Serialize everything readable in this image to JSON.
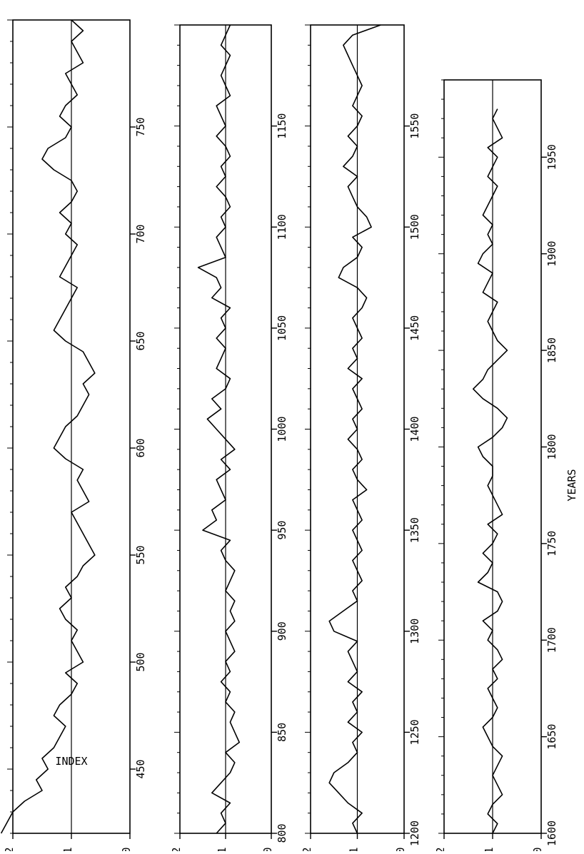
{
  "figure": {
    "index_label": "INDEX",
    "years_label": "YEARS",
    "ink_color": "#000000",
    "background": "#ffffff",
    "orientation": "rotated 90 degrees; time runs bottom-to-top along each panel"
  },
  "chart_data": [
    {
      "type": "line",
      "panel": "420-800",
      "xlabel": "",
      "ylabel": "INDEX",
      "xlim": [
        420,
        800
      ],
      "ylim": [
        0,
        2
      ],
      "x_ticks": [
        450,
        500,
        550,
        600,
        650,
        700,
        750
      ],
      "y_ticks": [
        0,
        1,
        2
      ],
      "reference_line": 1,
      "series": [
        {
          "x": [
            420,
            425,
            430,
            435,
            440,
            445,
            450,
            455,
            460,
            465,
            470,
            475,
            480,
            485,
            490,
            495,
            500,
            505,
            510,
            515,
            520,
            525,
            530,
            535,
            540,
            545,
            550,
            555,
            560,
            565,
            570,
            575,
            580,
            585,
            590,
            595,
            600,
            605,
            610,
            615,
            620,
            625,
            630,
            635,
            640,
            645,
            650,
            655,
            660,
            665,
            670,
            675,
            680,
            685,
            690,
            695,
            700,
            705,
            710,
            715,
            720,
            725,
            730,
            735,
            740,
            745,
            750,
            755,
            760,
            765,
            770,
            775,
            780,
            785,
            790,
            795,
            800
          ],
          "y": [
            2.2,
            2.1,
            2.0,
            1.8,
            1.5,
            1.6,
            1.4,
            1.5,
            1.3,
            1.2,
            1.1,
            1.3,
            1.2,
            1.0,
            0.9,
            1.1,
            0.8,
            0.9,
            1.0,
            0.9,
            1.1,
            1.2,
            1.0,
            1.1,
            0.9,
            0.8,
            0.6,
            0.7,
            0.8,
            0.9,
            1.0,
            0.7,
            0.8,
            0.9,
            0.8,
            1.1,
            1.3,
            1.2,
            1.1,
            0.9,
            0.8,
            0.7,
            0.8,
            0.6,
            0.7,
            0.8,
            1.1,
            1.3,
            1.2,
            1.1,
            1.0,
            0.9,
            1.2,
            1.1,
            1.0,
            0.9,
            1.1,
            1.0,
            1.2,
            1.0,
            0.9,
            1.0,
            1.3,
            1.5,
            1.4,
            1.1,
            1.0,
            1.2,
            1.1,
            0.9,
            1.0,
            1.1,
            0.8,
            0.9,
            1.0,
            0.8,
            1.0
          ]
        }
      ]
    },
    {
      "type": "line",
      "panel": "800-1200",
      "xlabel": "",
      "ylabel": "INDEX",
      "xlim": [
        800,
        1200
      ],
      "ylim": [
        0,
        2
      ],
      "x_ticks": [
        800,
        850,
        900,
        950,
        1000,
        1050,
        1100,
        1150
      ],
      "y_ticks": [
        0,
        1,
        2
      ],
      "reference_line": 1,
      "series": [
        {
          "x": [
            800,
            805,
            810,
            815,
            820,
            825,
            830,
            835,
            840,
            845,
            850,
            855,
            860,
            865,
            870,
            875,
            880,
            885,
            890,
            895,
            900,
            905,
            910,
            915,
            920,
            925,
            930,
            935,
            940,
            945,
            950,
            955,
            960,
            965,
            970,
            975,
            980,
            985,
            990,
            995,
            1000,
            1005,
            1010,
            1015,
            1020,
            1025,
            1030,
            1035,
            1040,
            1045,
            1050,
            1055,
            1060,
            1065,
            1070,
            1075,
            1080,
            1085,
            1090,
            1095,
            1100,
            1105,
            1110,
            1115,
            1120,
            1125,
            1130,
            1135,
            1140,
            1145,
            1150,
            1155,
            1160,
            1165,
            1170,
            1175,
            1180,
            1185,
            1190,
            1195,
            1200
          ],
          "y": [
            1.2,
            1.0,
            1.1,
            0.9,
            1.3,
            1.1,
            0.9,
            0.8,
            1.0,
            0.7,
            0.8,
            0.9,
            0.8,
            1.0,
            0.9,
            1.1,
            0.9,
            1.0,
            0.8,
            0.9,
            1.0,
            0.8,
            0.9,
            0.8,
            1.0,
            0.9,
            0.8,
            1.0,
            1.1,
            0.9,
            1.5,
            1.2,
            1.3,
            1.0,
            1.1,
            1.2,
            0.9,
            1.1,
            0.8,
            1.0,
            1.2,
            1.4,
            1.1,
            1.3,
            1.0,
            0.9,
            1.2,
            1.1,
            1.0,
            1.2,
            1.0,
            1.1,
            0.9,
            1.3,
            1.1,
            1.2,
            1.6,
            1.0,
            1.1,
            1.2,
            1.0,
            1.1,
            0.9,
            1.0,
            1.2,
            1.0,
            1.1,
            0.9,
            1.0,
            1.2,
            1.0,
            1.1,
            1.2,
            0.9,
            1.0,
            1.1,
            1.0,
            0.9,
            1.1,
            1.0,
            0.9
          ]
        }
      ]
    },
    {
      "type": "line",
      "panel": "1200-1600",
      "xlabel": "",
      "ylabel": "INDEX",
      "xlim": [
        1200,
        1600
      ],
      "ylim": [
        0,
        2
      ],
      "x_ticks": [
        1200,
        1250,
        1300,
        1350,
        1400,
        1450,
        1500,
        1550
      ],
      "y_ticks": [
        0,
        1,
        2
      ],
      "reference_line": 1,
      "series": [
        {
          "x": [
            1200,
            1205,
            1210,
            1215,
            1220,
            1225,
            1230,
            1235,
            1240,
            1245,
            1250,
            1255,
            1260,
            1265,
            1270,
            1275,
            1280,
            1285,
            1290,
            1295,
            1300,
            1305,
            1310,
            1315,
            1320,
            1325,
            1330,
            1335,
            1340,
            1345,
            1350,
            1355,
            1360,
            1365,
            1370,
            1375,
            1380,
            1385,
            1390,
            1395,
            1400,
            1405,
            1410,
            1415,
            1420,
            1425,
            1430,
            1435,
            1440,
            1445,
            1450,
            1455,
            1460,
            1465,
            1470,
            1475,
            1480,
            1485,
            1490,
            1495,
            1500,
            1505,
            1510,
            1515,
            1520,
            1525,
            1530,
            1535,
            1540,
            1545,
            1550,
            1555,
            1560,
            1565,
            1570,
            1575,
            1580,
            1585,
            1590,
            1595,
            1600
          ],
          "y": [
            1.0,
            1.1,
            0.9,
            1.2,
            1.4,
            1.6,
            1.5,
            1.2,
            1.0,
            1.1,
            0.9,
            1.2,
            1.0,
            1.1,
            0.9,
            1.2,
            1.0,
            1.1,
            1.2,
            1.0,
            1.5,
            1.6,
            1.3,
            1.0,
            1.1,
            0.9,
            1.0,
            1.1,
            0.9,
            1.0,
            1.1,
            0.9,
            1.0,
            1.1,
            0.8,
            1.0,
            1.1,
            0.9,
            1.0,
            1.2,
            1.0,
            1.1,
            0.9,
            1.0,
            1.1,
            0.9,
            1.2,
            1.0,
            1.1,
            0.9,
            1.0,
            1.1,
            0.9,
            0.8,
            1.0,
            1.4,
            1.3,
            1.0,
            0.9,
            1.1,
            0.7,
            0.8,
            1.0,
            1.1,
            1.2,
            1.0,
            1.3,
            1.1,
            1.0,
            1.2,
            1.0,
            0.9,
            1.1,
            1.0,
            0.9,
            1.0,
            1.1,
            1.2,
            1.3,
            1.1,
            0.5
          ]
        }
      ]
    },
    {
      "type": "line",
      "panel": "1600-1990",
      "xlabel": "YEARS",
      "ylabel": "INDEX",
      "xlim": [
        1600,
        1990
      ],
      "ylim": [
        0,
        2
      ],
      "x_ticks": [
        1600,
        1650,
        1700,
        1750,
        1800,
        1850,
        1900,
        1950
      ],
      "y_ticks": [
        0,
        1,
        2
      ],
      "reference_line": 1,
      "series": [
        {
          "x": [
            1600,
            1605,
            1610,
            1615,
            1620,
            1625,
            1630,
            1635,
            1640,
            1645,
            1650,
            1655,
            1660,
            1665,
            1670,
            1675,
            1680,
            1685,
            1690,
            1695,
            1700,
            1705,
            1710,
            1715,
            1720,
            1725,
            1730,
            1735,
            1740,
            1745,
            1750,
            1755,
            1760,
            1765,
            1770,
            1775,
            1780,
            1785,
            1790,
            1795,
            1800,
            1805,
            1810,
            1815,
            1820,
            1825,
            1830,
            1835,
            1840,
            1845,
            1850,
            1855,
            1860,
            1865,
            1870,
            1875,
            1880,
            1885,
            1890,
            1895,
            1900,
            1905,
            1910,
            1915,
            1920,
            1925,
            1930,
            1935,
            1940,
            1945,
            1950,
            1955,
            1960,
            1965,
            1970,
            1975
          ],
          "y": [
            1.0,
            0.9,
            1.1,
            1.0,
            0.8,
            0.9,
            1.0,
            0.9,
            0.8,
            1.0,
            1.1,
            1.2,
            1.0,
            0.9,
            1.0,
            1.1,
            0.9,
            1.0,
            0.8,
            0.9,
            1.1,
            1.0,
            1.2,
            0.9,
            0.8,
            0.9,
            1.3,
            1.1,
            1.0,
            1.2,
            1.0,
            0.9,
            1.1,
            0.8,
            0.9,
            1.0,
            1.1,
            1.0,
            1.0,
            1.2,
            1.3,
            1.0,
            0.8,
            0.7,
            0.9,
            1.2,
            1.4,
            1.2,
            1.1,
            0.9,
            0.7,
            0.9,
            1.0,
            1.1,
            1.0,
            0.9,
            1.2,
            1.1,
            1.0,
            1.3,
            1.2,
            1.0,
            1.1,
            1.0,
            1.2,
            1.1,
            1.0,
            0.9,
            1.1,
            1.0,
            0.9,
            1.1,
            0.8,
            0.9,
            1.0,
            0.9
          ]
        }
      ]
    }
  ]
}
